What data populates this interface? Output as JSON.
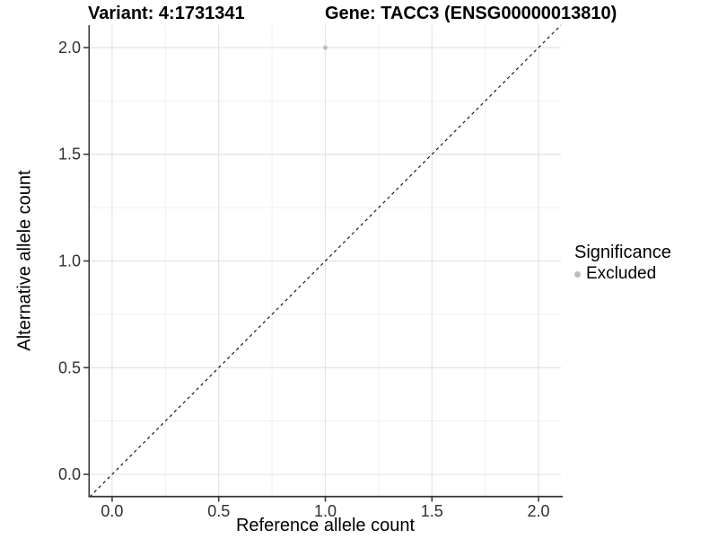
{
  "chart_data": {
    "type": "scatter",
    "titles": [
      "Variant: 4:1731341",
      "Gene: TACC3 (ENSG00000013810)"
    ],
    "xlabel": "Reference allele count",
    "ylabel": "Alternative allele count",
    "xlim": [
      -0.105,
      2.105
    ],
    "ylim": [
      -0.105,
      2.105
    ],
    "x_ticks": {
      "values": [
        0,
        0.5,
        1,
        1.5,
        2
      ],
      "labels": [
        "0.0",
        "0.5",
        "1.0",
        "1.5",
        "2.0"
      ]
    },
    "y_ticks": {
      "values": [
        0,
        0.5,
        1,
        1.5,
        2
      ],
      "labels": [
        "0.0",
        "0.5",
        "1.0",
        "1.5",
        "2.0"
      ]
    },
    "minor_grid": [
      0.25,
      0.75,
      1.25,
      1.75
    ],
    "grid": "on",
    "points": [
      {
        "x": 1.0,
        "y": 2.0,
        "series": "Excluded"
      }
    ],
    "series": [
      {
        "name": "Excluded",
        "color": "#bdbdbd"
      }
    ],
    "reference_line": {
      "equation": "y = x",
      "style": "dashed",
      "color": "#1a1a1a"
    },
    "legend": {
      "title": "Significance",
      "position": "right",
      "items": [
        {
          "label": "Excluded",
          "color": "#bdbdbd"
        }
      ]
    },
    "colors": {
      "axis": "#333333",
      "tick_text": "#303030",
      "grid_major": "#e3e3e3",
      "grid_minor": "#f0f0f0",
      "background": "#ffffff"
    }
  }
}
